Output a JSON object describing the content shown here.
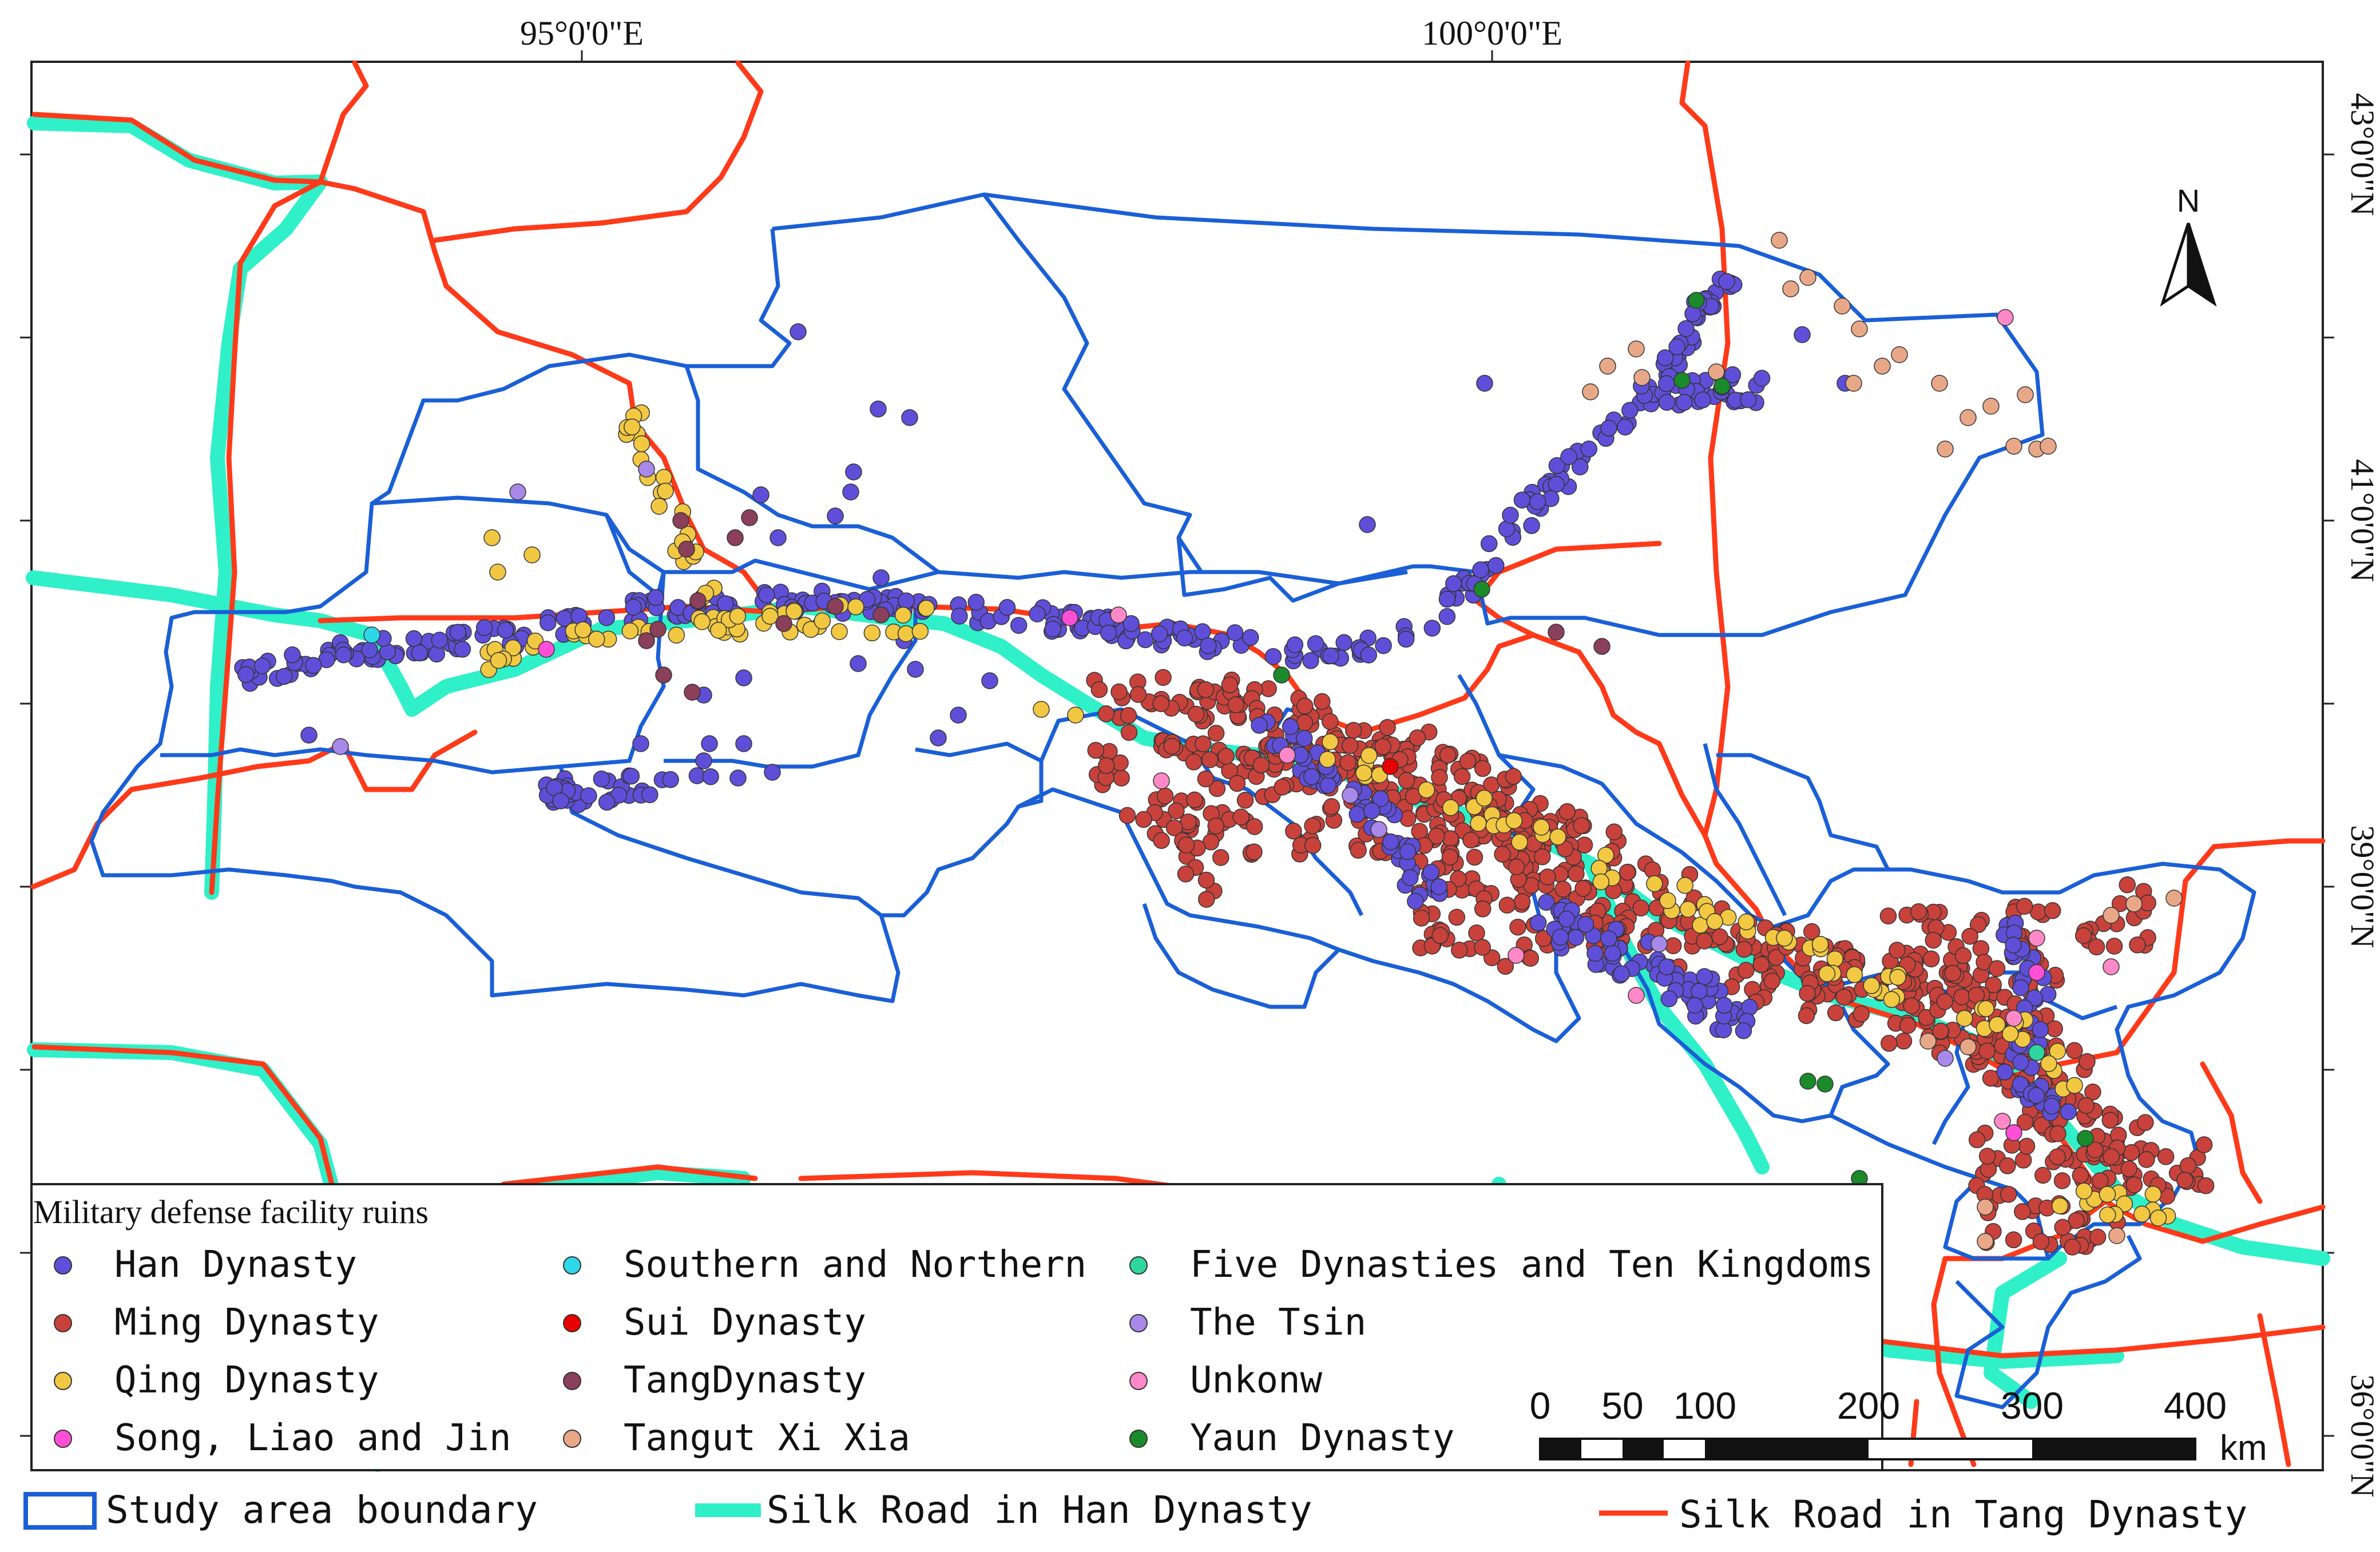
{
  "map": {
    "graticule_labels": {
      "top": [
        "95°0'0\"E",
        "100°0'0\"E"
      ],
      "right": [
        "43°0'0\"N",
        "41°0'0\"N",
        "39°0'0\"N",
        "36°0'0\"N"
      ]
    },
    "north_arrow": {
      "label": "N"
    },
    "scale_bar": {
      "ticks": [
        "0",
        "50",
        "100",
        "200",
        "300",
        "400"
      ],
      "unit": "km"
    },
    "colors": {
      "study_boundary": "#1a5fd6",
      "silk_road_han": "#2ff0c8",
      "silk_road_tang": "#ff3a1a",
      "han": "#5f4fd8",
      "ming": "#c8423b",
      "qing": "#f2c842",
      "song_liao_jin": "#ff4fd6",
      "southern_northern": "#2fd6e8",
      "sui": "#e80000",
      "tang": "#8a3f5a",
      "tangut": "#e8a888",
      "five_dynasties": "#2fd6a0",
      "tsin": "#a888e8",
      "unknown": "#ff88c8",
      "yuan": "#1a8a2a"
    },
    "legend": {
      "title": "Military defense facility ruins",
      "items": [
        {
          "label": "Han Dynasty",
          "color": "#5f4fd8"
        },
        {
          "label": "Ming Dynasty",
          "color": "#c8423b"
        },
        {
          "label": "Qing Dynasty",
          "color": "#f2c842"
        },
        {
          "label": "Song, Liao and Jin",
          "color": "#ff4fd6"
        },
        {
          "label": "Southern and Northern",
          "color": "#2fd6e8"
        },
        {
          "label": "Sui Dynasty",
          "color": "#e80000"
        },
        {
          "label": "TangDynasty",
          "color": "#8a3f5a"
        },
        {
          "label": "Tangut Xi Xia",
          "color": "#e8a888"
        },
        {
          "label": "Five Dynasties and Ten Kingdoms",
          "color": "#2fd6a0"
        },
        {
          "label": "The Tsin",
          "color": "#a888e8"
        },
        {
          "label": "Unkonw",
          "color": "#ff88c8"
        },
        {
          "label": "Yaun Dynasty",
          "color": "#1a8a2a"
        }
      ]
    },
    "bottom_legend": {
      "study_area": "Study area boundary",
      "silk_han": "Silk Road in Han Dynasty",
      "silk_tang": "Silk Road in Tang Dynasty"
    }
  }
}
